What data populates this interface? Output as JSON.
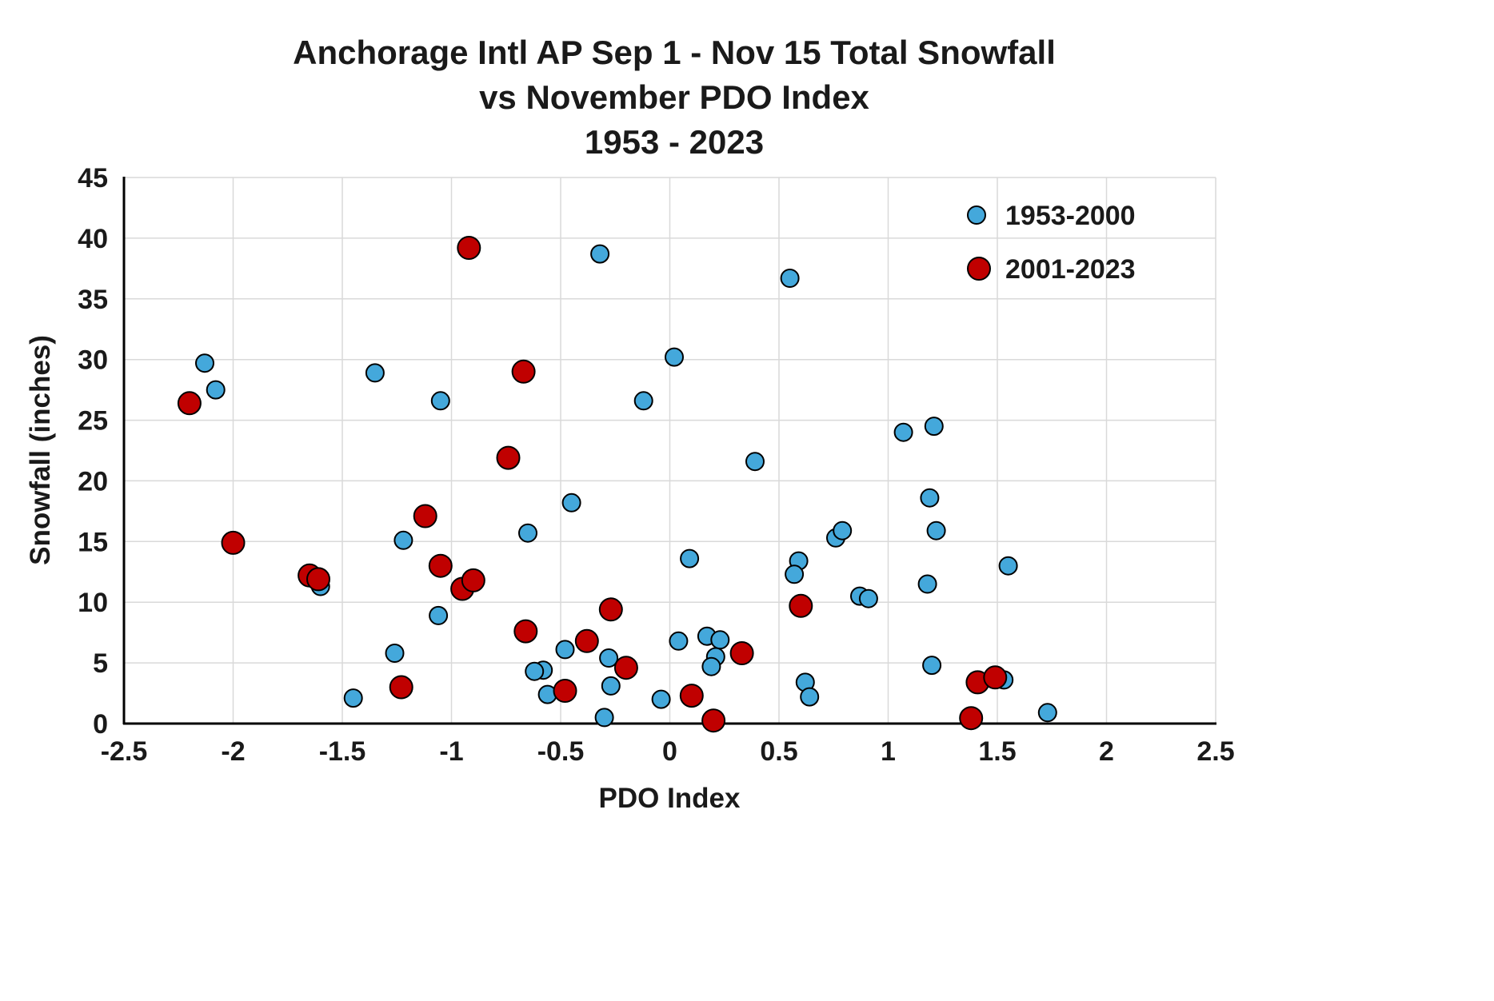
{
  "chart_data": {
    "type": "scatter",
    "title_lines": [
      "Anchorage Intl AP Sep 1 - Nov 15 Total Snowfall",
      "vs November PDO Index",
      "1953 - 2023"
    ],
    "xlabel": "PDO Index",
    "ylabel": "Snowfall (inches)",
    "xlim": [
      -2.5,
      2.5
    ],
    "ylim": [
      0,
      45
    ],
    "xticks": [
      -2.5,
      -2,
      -1.5,
      -1,
      -0.5,
      0,
      0.5,
      1,
      1.5,
      2,
      2.5
    ],
    "xtick_labels": [
      "-2.5",
      "-2",
      "-1.5",
      "-1",
      "-0.5",
      "0",
      "0.5",
      "1",
      "1.5",
      "2",
      "2.5"
    ],
    "yticks": [
      0,
      5,
      10,
      15,
      20,
      25,
      30,
      35,
      40,
      45
    ],
    "ytick_labels": [
      "0",
      "5",
      "10",
      "15",
      "20",
      "25",
      "30",
      "35",
      "40",
      "45"
    ],
    "grid": true,
    "legend_position": "top-right",
    "colors": {
      "grid": "#D9D9D9",
      "axis": "#000000",
      "background": "#FFFFFF",
      "marker_edge": "#000000"
    },
    "series": [
      {
        "name": "1953-2000",
        "color": "#44A8DB",
        "points": [
          [
            -2.13,
            29.7
          ],
          [
            -2.08,
            27.5
          ],
          [
            -1.35,
            28.9
          ],
          [
            -1.05,
            26.6
          ],
          [
            -0.32,
            38.7
          ],
          [
            0.02,
            30.2
          ],
          [
            -0.12,
            26.6
          ],
          [
            0.55,
            36.7
          ],
          [
            0.39,
            21.6
          ],
          [
            1.07,
            24.0
          ],
          [
            1.21,
            24.5
          ],
          [
            1.19,
            18.6
          ],
          [
            1.22,
            15.9
          ],
          [
            -0.45,
            18.2
          ],
          [
            -0.65,
            15.7
          ],
          [
            -1.22,
            15.1
          ],
          [
            -1.06,
            8.9
          ],
          [
            -1.6,
            11.3
          ],
          [
            -1.26,
            5.8
          ],
          [
            -1.45,
            2.1
          ],
          [
            0.09,
            13.6
          ],
          [
            0.59,
            13.4
          ],
          [
            0.57,
            12.3
          ],
          [
            0.76,
            15.3
          ],
          [
            0.79,
            15.9
          ],
          [
            0.87,
            10.5
          ],
          [
            0.91,
            10.3
          ],
          [
            1.18,
            11.5
          ],
          [
            1.55,
            13.0
          ],
          [
            1.2,
            4.8
          ],
          [
            1.53,
            3.6
          ],
          [
            1.73,
            0.9
          ],
          [
            0.62,
            3.4
          ],
          [
            0.64,
            2.2
          ],
          [
            0.04,
            6.8
          ],
          [
            0.17,
            7.2
          ],
          [
            0.23,
            6.9
          ],
          [
            0.21,
            5.5
          ],
          [
            0.19,
            4.7
          ],
          [
            -0.04,
            2.0
          ],
          [
            -0.27,
            3.1
          ],
          [
            -0.3,
            0.5
          ],
          [
            -0.28,
            5.4
          ],
          [
            -0.48,
            6.1
          ],
          [
            -0.58,
            4.4
          ],
          [
            -0.62,
            4.3
          ],
          [
            -0.56,
            2.4
          ]
        ]
      },
      {
        "name": "2001-2023",
        "color": "#C00000",
        "points": [
          [
            -2.2,
            26.4
          ],
          [
            -2.0,
            14.9
          ],
          [
            -1.65,
            12.2
          ],
          [
            -1.61,
            11.9
          ],
          [
            -1.23,
            3.0
          ],
          [
            -1.12,
            17.1
          ],
          [
            -1.05,
            13.0
          ],
          [
            -0.95,
            11.1
          ],
          [
            -0.9,
            11.8
          ],
          [
            -0.92,
            39.2
          ],
          [
            -0.67,
            29.0
          ],
          [
            -0.74,
            21.9
          ],
          [
            -0.66,
            7.6
          ],
          [
            -0.48,
            2.7
          ],
          [
            -0.38,
            6.8
          ],
          [
            -0.27,
            9.4
          ],
          [
            -0.2,
            4.6
          ],
          [
            0.1,
            2.3
          ],
          [
            0.2,
            0.25
          ],
          [
            0.33,
            5.8
          ],
          [
            0.6,
            9.7
          ],
          [
            1.38,
            0.45
          ],
          [
            1.41,
            3.4
          ],
          [
            1.49,
            3.8
          ]
        ]
      }
    ]
  }
}
